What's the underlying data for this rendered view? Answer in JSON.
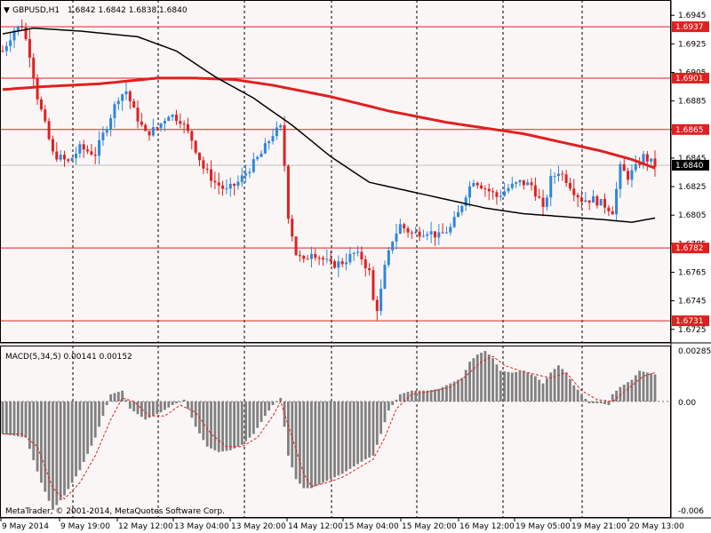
{
  "header": {
    "symbol_label": "GBPUSD,H1",
    "ohlc": "1.6842 1.6842 1.6838 1.6840",
    "menu_glyph": "▼"
  },
  "colors": {
    "background": "#fbf6f6",
    "bull_candle": "#2e86de",
    "bear_candle": "#e02020",
    "ma_fast": "#e02020",
    "ma_slow": "#000000",
    "level_line": "#e02020",
    "histogram": "#808080",
    "signal": "#e02020",
    "grid": "#000000"
  },
  "macd": {
    "title": "MACD(5,34,5) 0.00141 0.00152",
    "ticks": [
      "0.00285",
      "0.00",
      "-0.006"
    ]
  },
  "footer": {
    "copyright": "MetaTrader, © 2001-2014, MetaQuotes Software Corp."
  },
  "chart_data": {
    "type": "candlestick",
    "instrument": "GBPUSD",
    "timeframe": "H1",
    "price_axis_ticks": [
      "1.6945",
      "1.6925",
      "1.6905",
      "1.6885",
      "1.6865",
      "1.6845",
      "1.6825",
      "1.6805",
      "1.6785",
      "1.6765",
      "1.6745",
      "1.6725"
    ],
    "price_axis_tick_values": [
      1.6945,
      1.6925,
      1.6905,
      1.6885,
      1.6865,
      1.6845,
      1.6825,
      1.6805,
      1.6785,
      1.6765,
      1.6745,
      1.6725
    ],
    "price_range": [
      1.6718,
      1.6952
    ],
    "levels": [
      1.6937,
      1.6901,
      1.6865,
      1.6782,
      1.6731
    ],
    "level_labels": [
      "1.6937",
      "1.6901",
      "1.6865",
      "1.6782",
      "1.6731"
    ],
    "current_price": 1.684,
    "current_price_label": "1.6840",
    "time_axis_labels": [
      "9 May 2014",
      "9 May 19:00",
      "12 May 12:00",
      "13 May 04:00",
      "13 May 20:00",
      "14 May 12:00",
      "15 May 04:00",
      "15 May 20:00",
      "16 May 12:00",
      "19 May 05:00",
      "19 May 21:00",
      "20 May 13:00"
    ],
    "price_path": [
      [
        0,
        1.692
      ],
      [
        3,
        1.6935
      ],
      [
        5,
        1.6938
      ],
      [
        7,
        1.6918
      ],
      [
        9,
        1.6888
      ],
      [
        11,
        1.6868
      ],
      [
        13,
        1.6848
      ],
      [
        17,
        1.6842
      ],
      [
        20,
        1.6852
      ],
      [
        24,
        1.6848
      ],
      [
        27,
        1.6868
      ],
      [
        30,
        1.6888
      ],
      [
        32,
        1.6892
      ],
      [
        34,
        1.6878
      ],
      [
        37,
        1.6862
      ],
      [
        40,
        1.6866
      ],
      [
        43,
        1.6876
      ],
      [
        46,
        1.6872
      ],
      [
        49,
        1.6858
      ],
      [
        52,
        1.6838
      ],
      [
        55,
        1.6828
      ],
      [
        58,
        1.6822
      ],
      [
        61,
        1.6828
      ],
      [
        64,
        1.6838
      ],
      [
        67,
        1.6848
      ],
      [
        70,
        1.6862
      ],
      [
        72,
        1.6866
      ],
      [
        73,
        1.684
      ],
      [
        74,
        1.6805
      ],
      [
        76,
        1.6778
      ],
      [
        78,
        1.6772
      ],
      [
        80,
        1.678
      ],
      [
        82,
        1.6776
      ],
      [
        85,
        1.677
      ],
      [
        88,
        1.6772
      ],
      [
        91,
        1.6778
      ],
      [
        93,
        1.6775
      ],
      [
        95,
        1.6765
      ],
      [
        96,
        1.6745
      ],
      [
        97,
        1.674
      ],
      [
        98,
        1.6752
      ],
      [
        99,
        1.6768
      ],
      [
        101,
        1.6788
      ],
      [
        103,
        1.6798
      ],
      [
        106,
        1.6792
      ],
      [
        110,
        1.6794
      ],
      [
        113,
        1.679
      ],
      [
        116,
        1.6796
      ],
      [
        118,
        1.6806
      ],
      [
        120,
        1.682
      ],
      [
        122,
        1.683
      ],
      [
        124,
        1.6826
      ],
      [
        126,
        1.6822
      ],
      [
        128,
        1.6818
      ],
      [
        131,
        1.6824
      ],
      [
        134,
        1.6828
      ],
      [
        137,
        1.6826
      ],
      [
        139,
        1.6816
      ],
      [
        140,
        1.6808
      ],
      [
        142,
        1.683
      ],
      [
        144,
        1.6836
      ],
      [
        146,
        1.683
      ],
      [
        148,
        1.6822
      ],
      [
        150,
        1.6816
      ],
      [
        153,
        1.6816
      ],
      [
        156,
        1.6812
      ],
      [
        158,
        1.6808
      ],
      [
        160,
        1.6838
      ],
      [
        162,
        1.6832
      ],
      [
        164,
        1.6838
      ],
      [
        166,
        1.6846
      ],
      [
        168,
        1.6842
      ],
      [
        169,
        1.684
      ]
    ],
    "ma_fast_path": [
      [
        0,
        1.6893
      ],
      [
        10,
        1.6895
      ],
      [
        25,
        1.6897
      ],
      [
        40,
        1.6901
      ],
      [
        50,
        1.6901
      ],
      [
        60,
        1.69
      ],
      [
        70,
        1.6896
      ],
      [
        85,
        1.6888
      ],
      [
        100,
        1.6878
      ],
      [
        115,
        1.687
      ],
      [
        125,
        1.6866
      ],
      [
        135,
        1.6862
      ],
      [
        145,
        1.6856
      ],
      [
        155,
        1.685
      ],
      [
        163,
        1.6844
      ],
      [
        169,
        1.6838
      ]
    ],
    "ma_slow_path": [
      [
        0,
        1.6932
      ],
      [
        8,
        1.6936
      ],
      [
        20,
        1.6934
      ],
      [
        35,
        1.693
      ],
      [
        45,
        1.692
      ],
      [
        55,
        1.6902
      ],
      [
        65,
        1.6887
      ],
      [
        75,
        1.6868
      ],
      [
        85,
        1.6846
      ],
      [
        95,
        1.6828
      ],
      [
        105,
        1.6822
      ],
      [
        115,
        1.6816
      ],
      [
        125,
        1.681
      ],
      [
        135,
        1.6806
      ],
      [
        145,
        1.6804
      ],
      [
        155,
        1.6802
      ],
      [
        163,
        1.68
      ],
      [
        169,
        1.6803
      ]
    ],
    "macd_range": [
      -0.0063,
      0.0029
    ],
    "macd_histogram_path": [
      [
        0,
        -0.0018
      ],
      [
        6,
        -0.002
      ],
      [
        10,
        -0.0045
      ],
      [
        13,
        -0.006
      ],
      [
        16,
        -0.0052
      ],
      [
        20,
        -0.0038
      ],
      [
        24,
        -0.002
      ],
      [
        28,
        0.0004
      ],
      [
        31,
        0.0006
      ],
      [
        33,
        -0.0004
      ],
      [
        37,
        -0.001
      ],
      [
        41,
        -0.0006
      ],
      [
        44,
        -0.0002
      ],
      [
        47,
        0.0001
      ],
      [
        50,
        -0.0014
      ],
      [
        53,
        -0.0025
      ],
      [
        56,
        -0.0028
      ],
      [
        59,
        -0.0027
      ],
      [
        62,
        -0.0024
      ],
      [
        65,
        -0.0018
      ],
      [
        68,
        -0.0008
      ],
      [
        70,
        -0.0002
      ],
      [
        72,
        0.0002
      ],
      [
        74,
        -0.003
      ],
      [
        76,
        -0.0043
      ],
      [
        78,
        -0.0048
      ],
      [
        80,
        -0.0048
      ],
      [
        82,
        -0.0046
      ],
      [
        85,
        -0.0043
      ],
      [
        88,
        -0.004
      ],
      [
        91,
        -0.0036
      ],
      [
        94,
        -0.0032
      ],
      [
        96,
        -0.003
      ],
      [
        98,
        -0.0018
      ],
      [
        100,
        -0.0005
      ],
      [
        103,
        0.0004
      ],
      [
        106,
        0.0006
      ],
      [
        110,
        0.0006
      ],
      [
        113,
        0.0007
      ],
      [
        116,
        0.001
      ],
      [
        119,
        0.0013
      ],
      [
        121,
        0.0022
      ],
      [
        123,
        0.0026
      ],
      [
        125,
        0.0028
      ],
      [
        127,
        0.0024
      ],
      [
        129,
        0.0017
      ],
      [
        132,
        0.0016
      ],
      [
        135,
        0.0017
      ],
      [
        138,
        0.0014
      ],
      [
        140,
        0.001
      ],
      [
        142,
        0.0016
      ],
      [
        144,
        0.002
      ],
      [
        146,
        0.0016
      ],
      [
        148,
        0.0009
      ],
      [
        150,
        0.0004
      ],
      [
        152,
        -0.0001
      ],
      [
        155,
        -0.0001
      ],
      [
        157,
        -0.0002
      ],
      [
        158,
        0.0004
      ],
      [
        160,
        0.0008
      ],
      [
        163,
        0.0012
      ],
      [
        165,
        0.0017
      ],
      [
        167,
        0.0016
      ],
      [
        169,
        0.0015
      ]
    ],
    "macd_signal_path": [
      [
        0,
        -0.0018
      ],
      [
        5,
        -0.0018
      ],
      [
        9,
        -0.0025
      ],
      [
        13,
        -0.0048
      ],
      [
        16,
        -0.0054
      ],
      [
        20,
        -0.0045
      ],
      [
        24,
        -0.003
      ],
      [
        28,
        -0.001
      ],
      [
        31,
        0.0002
      ],
      [
        34,
        0.0
      ],
      [
        38,
        -0.0008
      ],
      [
        42,
        -0.0008
      ],
      [
        46,
        -0.0002
      ],
      [
        50,
        -0.0006
      ],
      [
        54,
        -0.0018
      ],
      [
        58,
        -0.0025
      ],
      [
        62,
        -0.0025
      ],
      [
        66,
        -0.002
      ],
      [
        70,
        -0.0008
      ],
      [
        72,
        0.0
      ],
      [
        75,
        -0.002
      ],
      [
        78,
        -0.004
      ],
      [
        80,
        -0.0047
      ],
      [
        84,
        -0.0045
      ],
      [
        88,
        -0.0042
      ],
      [
        92,
        -0.0037
      ],
      [
        96,
        -0.0032
      ],
      [
        99,
        -0.002
      ],
      [
        102,
        -0.0004
      ],
      [
        106,
        0.0004
      ],
      [
        112,
        0.0006
      ],
      [
        116,
        0.0008
      ],
      [
        120,
        0.0014
      ],
      [
        124,
        0.0022
      ],
      [
        127,
        0.0025
      ],
      [
        130,
        0.002
      ],
      [
        134,
        0.0017
      ],
      [
        138,
        0.0015
      ],
      [
        142,
        0.0013
      ],
      [
        146,
        0.0016
      ],
      [
        150,
        0.0006
      ],
      [
        154,
        0.0001
      ],
      [
        158,
        0.0
      ],
      [
        162,
        0.0007
      ],
      [
        166,
        0.0014
      ],
      [
        169,
        0.0016
      ]
    ],
    "bar_count": 170
  }
}
